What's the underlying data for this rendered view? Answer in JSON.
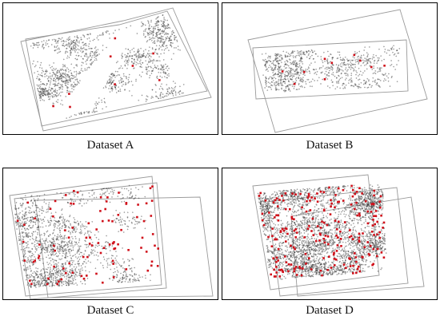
{
  "colors": {
    "frame": "#000000",
    "outline": "#9a9a9a",
    "points": "#3a3a3a",
    "keypoints": "#d0101a"
  },
  "panels": [
    {
      "caption": "Dataset A",
      "density": "sparse",
      "keypoints": "few"
    },
    {
      "caption": "Dataset B",
      "density": "sparse",
      "keypoints": "few"
    },
    {
      "caption": "Dataset C",
      "density": "medium",
      "keypoints": "many"
    },
    {
      "caption": "Dataset D",
      "density": "dense",
      "keypoints": "very-many"
    }
  ]
}
